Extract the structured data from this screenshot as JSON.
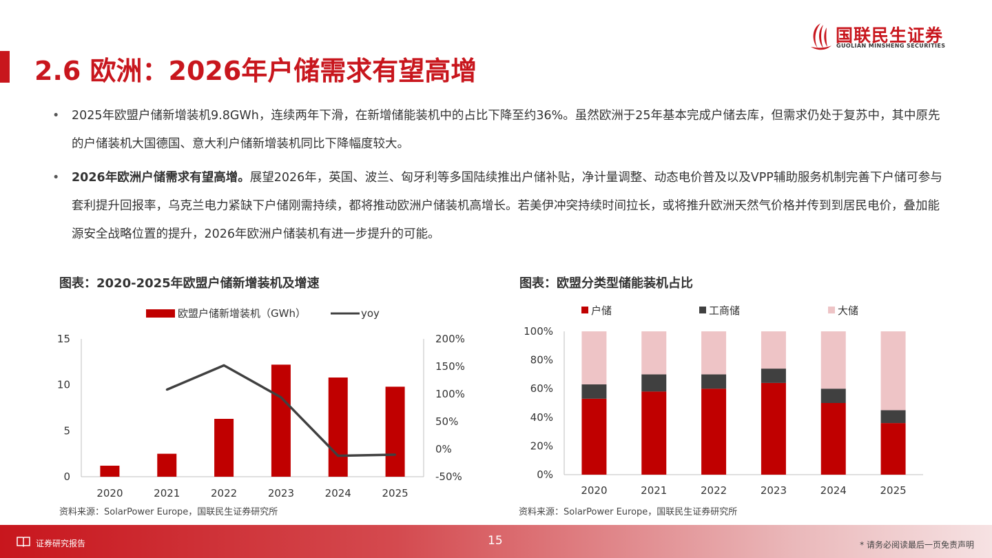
{
  "header": {
    "title": "2.6 欧洲：2026年户储需求有望高增",
    "logo_cn": "国联民生证券",
    "logo_en": "GUOLIAN MINSHENG SECURITIES",
    "brand_color": "#c8161d"
  },
  "bullets": [
    {
      "bold": "",
      "text": "2025年欧盟户储新增装机9.8GWh，连续两年下滑，在新增储能装机中的占比下降至约36%。虽然欧洲于25年基本完成户储去库，但需求仍处于复苏中，其中原先的户储装机大国德国、意大利户储新增装机同比下降幅度较大。"
    },
    {
      "bold": "2026年欧洲户储需求有望高增。",
      "text": "展望2026年，英国、波兰、匈牙利等多国陆续推出户储补贴，净计量调整、动态电价普及以及VPP辅助服务机制完善下户储可参与套利提升回报率，乌克兰电力紧缺下户储刚需持续，都将推动欧洲户储装机高增长。若美伊冲突持续时间拉长，或将推升欧洲天然气价格并传到到居民电价，叠加能源安全战略位置的提升，2026年欧洲户储装机有进一步提升的可能。"
    }
  ],
  "left_chart": {
    "caption": "图表：2020-2025年欧盟户储新增装机及增速",
    "source": "资料来源：SolarPower Europe，国联民生证券研究所"
  },
  "right_chart": {
    "caption": "图表：欧盟分类型储能装机占比",
    "source": "资料来源：SolarPower Europe，国联民生证券研究所"
  },
  "footer": {
    "left": "证券研究报告",
    "page": "15",
    "right": "* 请务必阅读最后一页免责声明"
  },
  "chart_data": [
    {
      "type": "bar",
      "categories": [
        "2020",
        "2021",
        "2022",
        "2023",
        "2024",
        "2025"
      ],
      "series": [
        {
          "name": "欧盟户储新增装机（GWh）",
          "type": "bar",
          "axis": "left",
          "color": "#c00000",
          "values": [
            1.2,
            2.5,
            6.3,
            12.2,
            10.8,
            9.8
          ]
        },
        {
          "name": "yoy",
          "type": "line",
          "axis": "right",
          "color": "#404040",
          "values": [
            null,
            108,
            152,
            94,
            -12,
            -10
          ]
        }
      ],
      "ylim": [
        0,
        15
      ],
      "yticks": [
        "0",
        "5",
        "10",
        "15"
      ],
      "y2lim": [
        -50,
        200
      ],
      "y2ticks": [
        "-50%",
        "0%",
        "50%",
        "100%",
        "150%",
        "200%"
      ],
      "legend": "top",
      "grid": false
    },
    {
      "type": "bar",
      "stacked": true,
      "categories": [
        "2020",
        "2021",
        "2022",
        "2023",
        "2024",
        "2025"
      ],
      "series": [
        {
          "name": "户储",
          "color": "#c00000",
          "values": [
            53,
            58,
            60,
            64,
            50,
            36
          ]
        },
        {
          "name": "工商储",
          "color": "#404040",
          "values": [
            10,
            12,
            10,
            10,
            10,
            9
          ]
        },
        {
          "name": "大储",
          "color": "#eec4c6",
          "values": [
            37,
            30,
            30,
            26,
            40,
            55
          ]
        }
      ],
      "ylim": [
        0,
        100
      ],
      "yticks": [
        "0%",
        "20%",
        "40%",
        "60%",
        "80%",
        "100%"
      ],
      "legend": "top",
      "grid": false
    }
  ]
}
